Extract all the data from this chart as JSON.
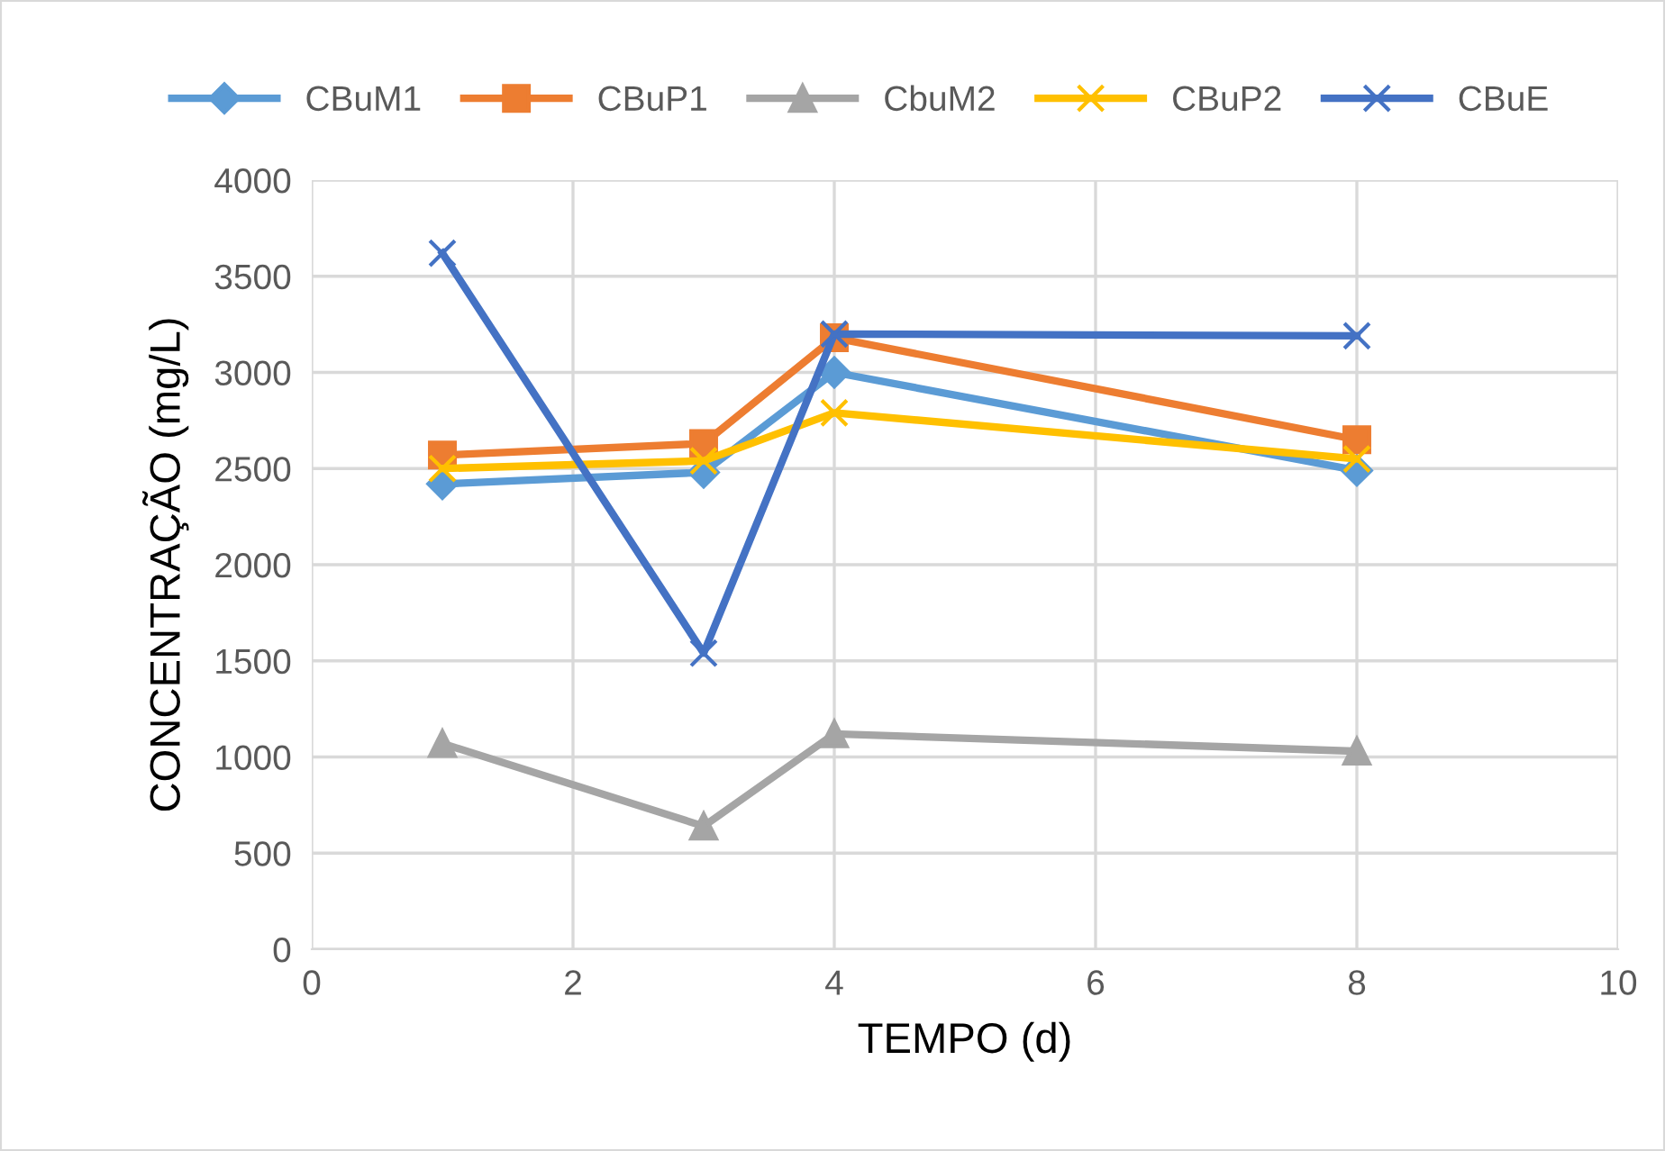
{
  "chart_data": {
    "type": "line",
    "xlabel": "TEMPO (d)",
    "ylabel": "CONCENTRAÇÃO (mg/L)",
    "x": [
      1,
      3,
      4,
      8
    ],
    "xlim": [
      0,
      10
    ],
    "xticks": [
      0,
      2,
      4,
      6,
      8,
      10
    ],
    "ylim": [
      0,
      4000
    ],
    "yticks": [
      0,
      500,
      1000,
      1500,
      2000,
      2500,
      3000,
      3500,
      4000
    ],
    "grid": true,
    "legend": "top",
    "line_style": "solid",
    "series": [
      {
        "name": "CBuM1",
        "color": "#5b9bd5",
        "marker": "diamond",
        "values": [
          2420,
          2480,
          3000,
          2490
        ]
      },
      {
        "name": "CBuP1",
        "color": "#ed7d31",
        "marker": "square",
        "values": [
          2570,
          2630,
          3180,
          2650
        ]
      },
      {
        "name": "CbuM2",
        "color": "#a5a5a5",
        "marker": "triangle",
        "values": [
          1070,
          640,
          1120,
          1030
        ]
      },
      {
        "name": "CBuP2",
        "color": "#ffc000",
        "marker": "cross",
        "values": [
          2500,
          2540,
          2790,
          2550
        ]
      },
      {
        "name": "CBuE",
        "color": "#4472c4",
        "marker": "cross",
        "values": [
          3620,
          1540,
          3200,
          3190
        ]
      }
    ]
  }
}
